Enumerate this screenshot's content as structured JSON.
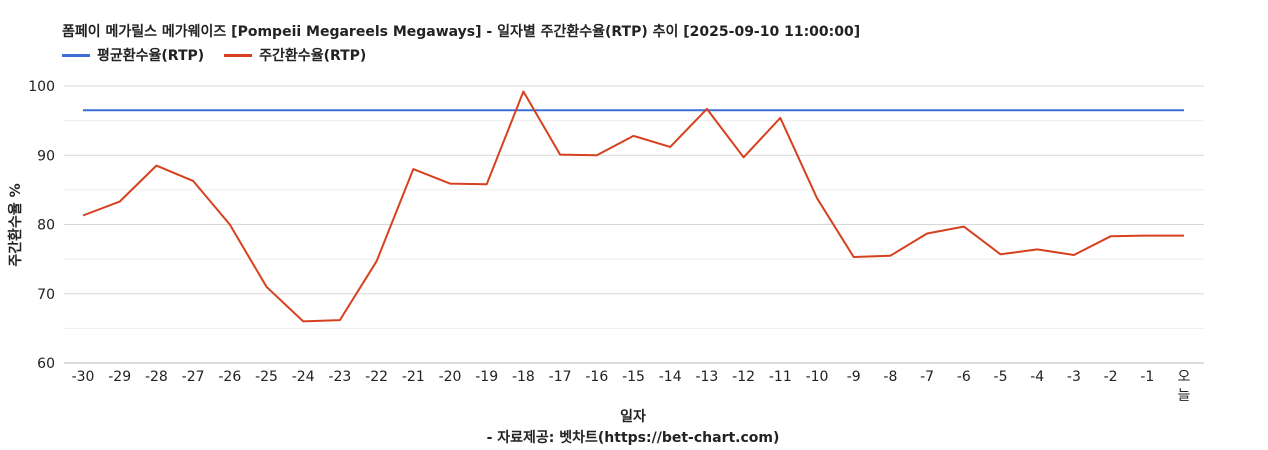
{
  "title": "폼페이 메가릴스 메가웨이즈 [Pompeii Megareels Megaways] - 일자별 주간환수율(RTP) 추이 [2025-09-10 11:00:00]",
  "footer": "- 자료제공: 벳차트(https://bet-chart.com)",
  "colors": {
    "avg": "#3d6fd8",
    "weekly": "#d7401e",
    "grid": "#d9d9d9"
  },
  "chart_data": {
    "type": "line",
    "xlabel": "일자",
    "ylabel": "주간환수율 %",
    "ylim": [
      60,
      100
    ],
    "yticks": [
      60,
      70,
      80,
      90,
      100
    ],
    "grid": true,
    "legend_position": "top-left",
    "categories": [
      "-30",
      "-29",
      "-28",
      "-27",
      "-26",
      "-25",
      "-24",
      "-23",
      "-22",
      "-21",
      "-20",
      "-19",
      "-18",
      "-17",
      "-16",
      "-15",
      "-14",
      "-13",
      "-12",
      "-11",
      "-10",
      "-9",
      "-8",
      "-7",
      "-6",
      "-5",
      "-4",
      "-3",
      "-2",
      "-1",
      "오늘"
    ],
    "series": [
      {
        "name": "평균환수율(RTP)",
        "values": [
          96.5,
          96.5,
          96.5,
          96.5,
          96.5,
          96.5,
          96.5,
          96.5,
          96.5,
          96.5,
          96.5,
          96.5,
          96.5,
          96.5,
          96.5,
          96.5,
          96.5,
          96.5,
          96.5,
          96.5,
          96.5,
          96.5,
          96.5,
          96.5,
          96.5,
          96.5,
          96.5,
          96.5,
          96.5,
          96.5,
          96.5
        ]
      },
      {
        "name": "주간환수율(RTP)",
        "values": [
          81.3,
          83.3,
          88.5,
          86.3,
          80.0,
          71.0,
          66.0,
          66.2,
          74.7,
          88.0,
          85.9,
          85.8,
          99.2,
          90.1,
          90.0,
          92.8,
          91.2,
          96.7,
          89.7,
          95.4,
          83.8,
          75.3,
          75.5,
          78.7,
          79.7,
          75.7,
          76.4,
          75.6,
          78.3,
          78.4,
          78.4
        ]
      }
    ]
  }
}
